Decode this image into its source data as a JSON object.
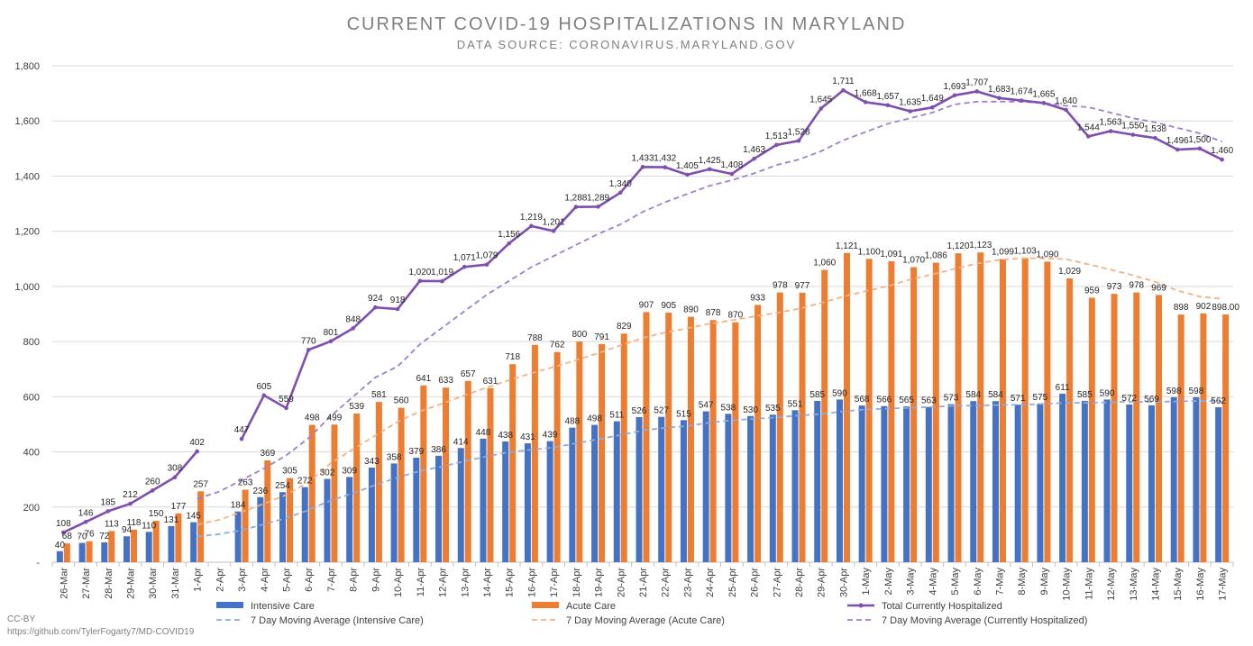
{
  "chart_data": {
    "type": "bar",
    "title": "CURRENT COVID-19 HOSPITALIZATIONS IN MARYLAND",
    "subtitle": "DATA SOURCE: CORONAVIRUS.MARYLAND.GOV",
    "ylim": [
      0,
      1800
    ],
    "yticks": [
      "-",
      "200",
      "400",
      "600",
      "800",
      "1,000",
      "1,200",
      "1,400",
      "1,600",
      "1,800"
    ],
    "grid": true,
    "legend_position": "bottom",
    "categories": [
      "26-Mar",
      "27-Mar",
      "28-Mar",
      "29-Mar",
      "30-Mar",
      "31-Mar",
      "1-Apr",
      "2-Apr",
      "3-Apr",
      "4-Apr",
      "5-Apr",
      "6-Apr",
      "7-Apr",
      "8-Apr",
      "9-Apr",
      "10-Apr",
      "11-Apr",
      "12-Apr",
      "13-Apr",
      "14-Apr",
      "15-Apr",
      "16-Apr",
      "17-Apr",
      "18-Apr",
      "19-Apr",
      "20-Apr",
      "21-Apr",
      "22-Apr",
      "23-Apr",
      "24-Apr",
      "25-Apr",
      "26-Apr",
      "27-Apr",
      "28-Apr",
      "29-Apr",
      "30-Apr",
      "1-May",
      "2-May",
      "3-May",
      "4-May",
      "5-May",
      "6-May",
      "7-May",
      "8-May",
      "9-May",
      "10-May",
      "11-May",
      "12-May",
      "13-May",
      "14-May",
      "15-May",
      "16-May",
      "17-May"
    ],
    "series": [
      {
        "name": "Intensive Care",
        "kind": "bar",
        "color": "#4472c4",
        "values": [
          40,
          70,
          72,
          94,
          110,
          131,
          145,
          null,
          184,
          236,
          254,
          272,
          302,
          309,
          343,
          358,
          379,
          386,
          414,
          448,
          438,
          431,
          439,
          488,
          498,
          511,
          526,
          527,
          515,
          547,
          538,
          530,
          535,
          551,
          585,
          590,
          568,
          566,
          565,
          563,
          573,
          584,
          584,
          571,
          575,
          611,
          585,
          590,
          572,
          569,
          598,
          598,
          562
        ],
        "labels": [
          "40",
          "70",
          "72",
          "94",
          "110",
          "131",
          "145",
          "",
          "184",
          "236",
          "254",
          "272",
          "302",
          "309",
          "343",
          "358",
          "379",
          "386",
          "414",
          "448",
          "438",
          "431",
          "439",
          "488",
          "498",
          "511",
          "526",
          "527",
          "515",
          "547",
          "538",
          "530",
          "535",
          "551",
          "585",
          "590",
          "568",
          "566",
          "565",
          "563",
          "573",
          "584",
          "584",
          "571",
          "575",
          "611",
          "585",
          "590",
          "572",
          "569",
          "598",
          "598",
          "562"
        ]
      },
      {
        "name": "Acute Care",
        "kind": "bar",
        "color": "#ed7d31",
        "values": [
          68,
          76,
          113,
          118,
          150,
          177,
          257,
          null,
          263,
          369,
          305,
          498,
          499,
          539,
          581,
          560,
          641,
          633,
          657,
          631,
          718,
          788,
          762,
          800,
          791,
          829,
          907,
          905,
          890,
          878,
          870,
          933,
          978,
          977,
          1060,
          1121,
          1100,
          1091,
          1070,
          1086,
          1120,
          1123,
          1099,
          1103,
          1090,
          1029,
          959,
          973,
          978,
          969,
          898,
          902,
          898
        ],
        "labels": [
          "68",
          "76",
          "113",
          "118",
          "150",
          "177",
          "257",
          "",
          "263",
          "369",
          "305",
          "498",
          "499",
          "539",
          "581",
          "560",
          "641",
          "633",
          "657",
          "631",
          "718",
          "788",
          "762",
          "800",
          "791",
          "829",
          "907",
          "905",
          "890",
          "878",
          "870",
          "933",
          "978",
          "977",
          "1,060",
          "1,121",
          "1,100",
          "1,091",
          "1,070",
          "1,086",
          "1,120",
          "1,123",
          "1,099",
          "1,103",
          "1,090",
          "1,029",
          "959",
          "973",
          "978",
          "969",
          "898",
          "902",
          "898.00"
        ]
      },
      {
        "name": "Total Currently Hospitalized",
        "kind": "line",
        "color": "#7f4fb0",
        "values": [
          108,
          146,
          185,
          212,
          260,
          308,
          402,
          null,
          447,
          605,
          559,
          770,
          801,
          848,
          924,
          918,
          1020,
          1019,
          1071,
          1079,
          1156,
          1219,
          1201,
          1288,
          1289,
          1340,
          1433,
          1432,
          1405,
          1425,
          1408,
          1463,
          1513,
          1528,
          1645,
          1711,
          1668,
          1657,
          1635,
          1649,
          1693,
          1707,
          1683,
          1674,
          1665,
          1640,
          1544,
          1563,
          1550,
          1538,
          1496,
          1500,
          1460
        ],
        "labels": [
          "108",
          "146",
          "185",
          "212",
          "260",
          "308",
          "402",
          "",
          "447",
          "605",
          "559",
          "770",
          "801",
          "848",
          "924",
          "918",
          "1,020",
          "1,019",
          "1,071",
          "1,079",
          "1,156",
          "1,219",
          "1,201",
          "1,288",
          "1,289",
          "1,340",
          "1,433",
          "1,432",
          "1,405",
          "1,425",
          "1,408",
          "1,463",
          "1,513",
          "1,528",
          "1,645",
          "1,711",
          "1,668",
          "1,657",
          "1,635",
          "1,649",
          "1,693",
          "1,707",
          "1,683",
          "1,674",
          "1,665",
          "1,640",
          "1,544",
          "1,563",
          "1,550",
          "1,538",
          "1,496",
          "1,500",
          "1,460"
        ]
      },
      {
        "name": "7 Day Moving Average (Intensive Care)",
        "kind": "dashed",
        "color": "#8faadc",
        "values": [
          null,
          null,
          null,
          null,
          null,
          null,
          93,
          102,
          116,
          138,
          160,
          189,
          224,
          250,
          280,
          307,
          331,
          347,
          366,
          384,
          399,
          408,
          416,
          431,
          446,
          461,
          478,
          487,
          494,
          506,
          515,
          520,
          525,
          532,
          537,
          547,
          554,
          557,
          560,
          563,
          567,
          568,
          570,
          571,
          574,
          578,
          578,
          580,
          582,
          581,
          583,
          585,
          583
        ]
      },
      {
        "name": "7 Day Moving Average (Acute Care)",
        "kind": "dashed",
        "color": "#f4b183",
        "values": [
          null,
          null,
          null,
          null,
          null,
          null,
          137,
          154,
          182,
          212,
          244,
          290,
          359,
          410,
          459,
          509,
          547,
          575,
          605,
          633,
          660,
          685,
          708,
          732,
          758,
          786,
          813,
          833,
          848,
          865,
          877,
          891,
          904,
          919,
          940,
          963,
          983,
          1001,
          1025,
          1043,
          1064,
          1083,
          1096,
          1102,
          1102,
          1099,
          1080,
          1061,
          1040,
          1017,
          985,
          963,
          955
        ]
      },
      {
        "name": "7 Day Moving Average (Currently Hospitalized)",
        "kind": "dashed",
        "color": "#9e7fcc",
        "values": [
          null,
          null,
          null,
          null,
          null,
          null,
          230,
          256,
          298,
          340,
          387,
          450,
          530,
          600,
          670,
          710,
          790,
          850,
          910,
          970,
          1020,
          1070,
          1110,
          1150,
          1190,
          1225,
          1270,
          1305,
          1335,
          1365,
          1385,
          1410,
          1440,
          1460,
          1490,
          1530,
          1560,
          1590,
          1610,
          1630,
          1660,
          1670,
          1670,
          1670,
          1665,
          1655,
          1650,
          1630,
          1610,
          1595,
          1575,
          1555,
          1525
        ]
      }
    ],
    "footer": [
      "CC-BY",
      "https://github.com/TylerFogarty7/MD-COVID19"
    ]
  }
}
